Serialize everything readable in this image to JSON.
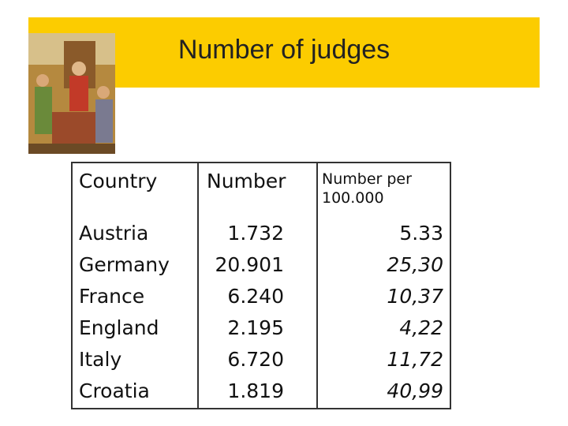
{
  "header": {
    "title": "Number of judges"
  },
  "table": {
    "columns": [
      "Country",
      "Number",
      "Number per 100.000"
    ],
    "rows": [
      [
        "Austria",
        "1.732",
        "5.33"
      ],
      [
        "Germany",
        "20.901",
        "25,30"
      ],
      [
        "France",
        "6.240",
        "10,37"
      ],
      [
        "England",
        "2.195",
        "4,22"
      ],
      [
        "Italy",
        "6.720",
        "11,72"
      ],
      [
        "Croatia",
        "1.819",
        "40,99"
      ]
    ]
  }
}
